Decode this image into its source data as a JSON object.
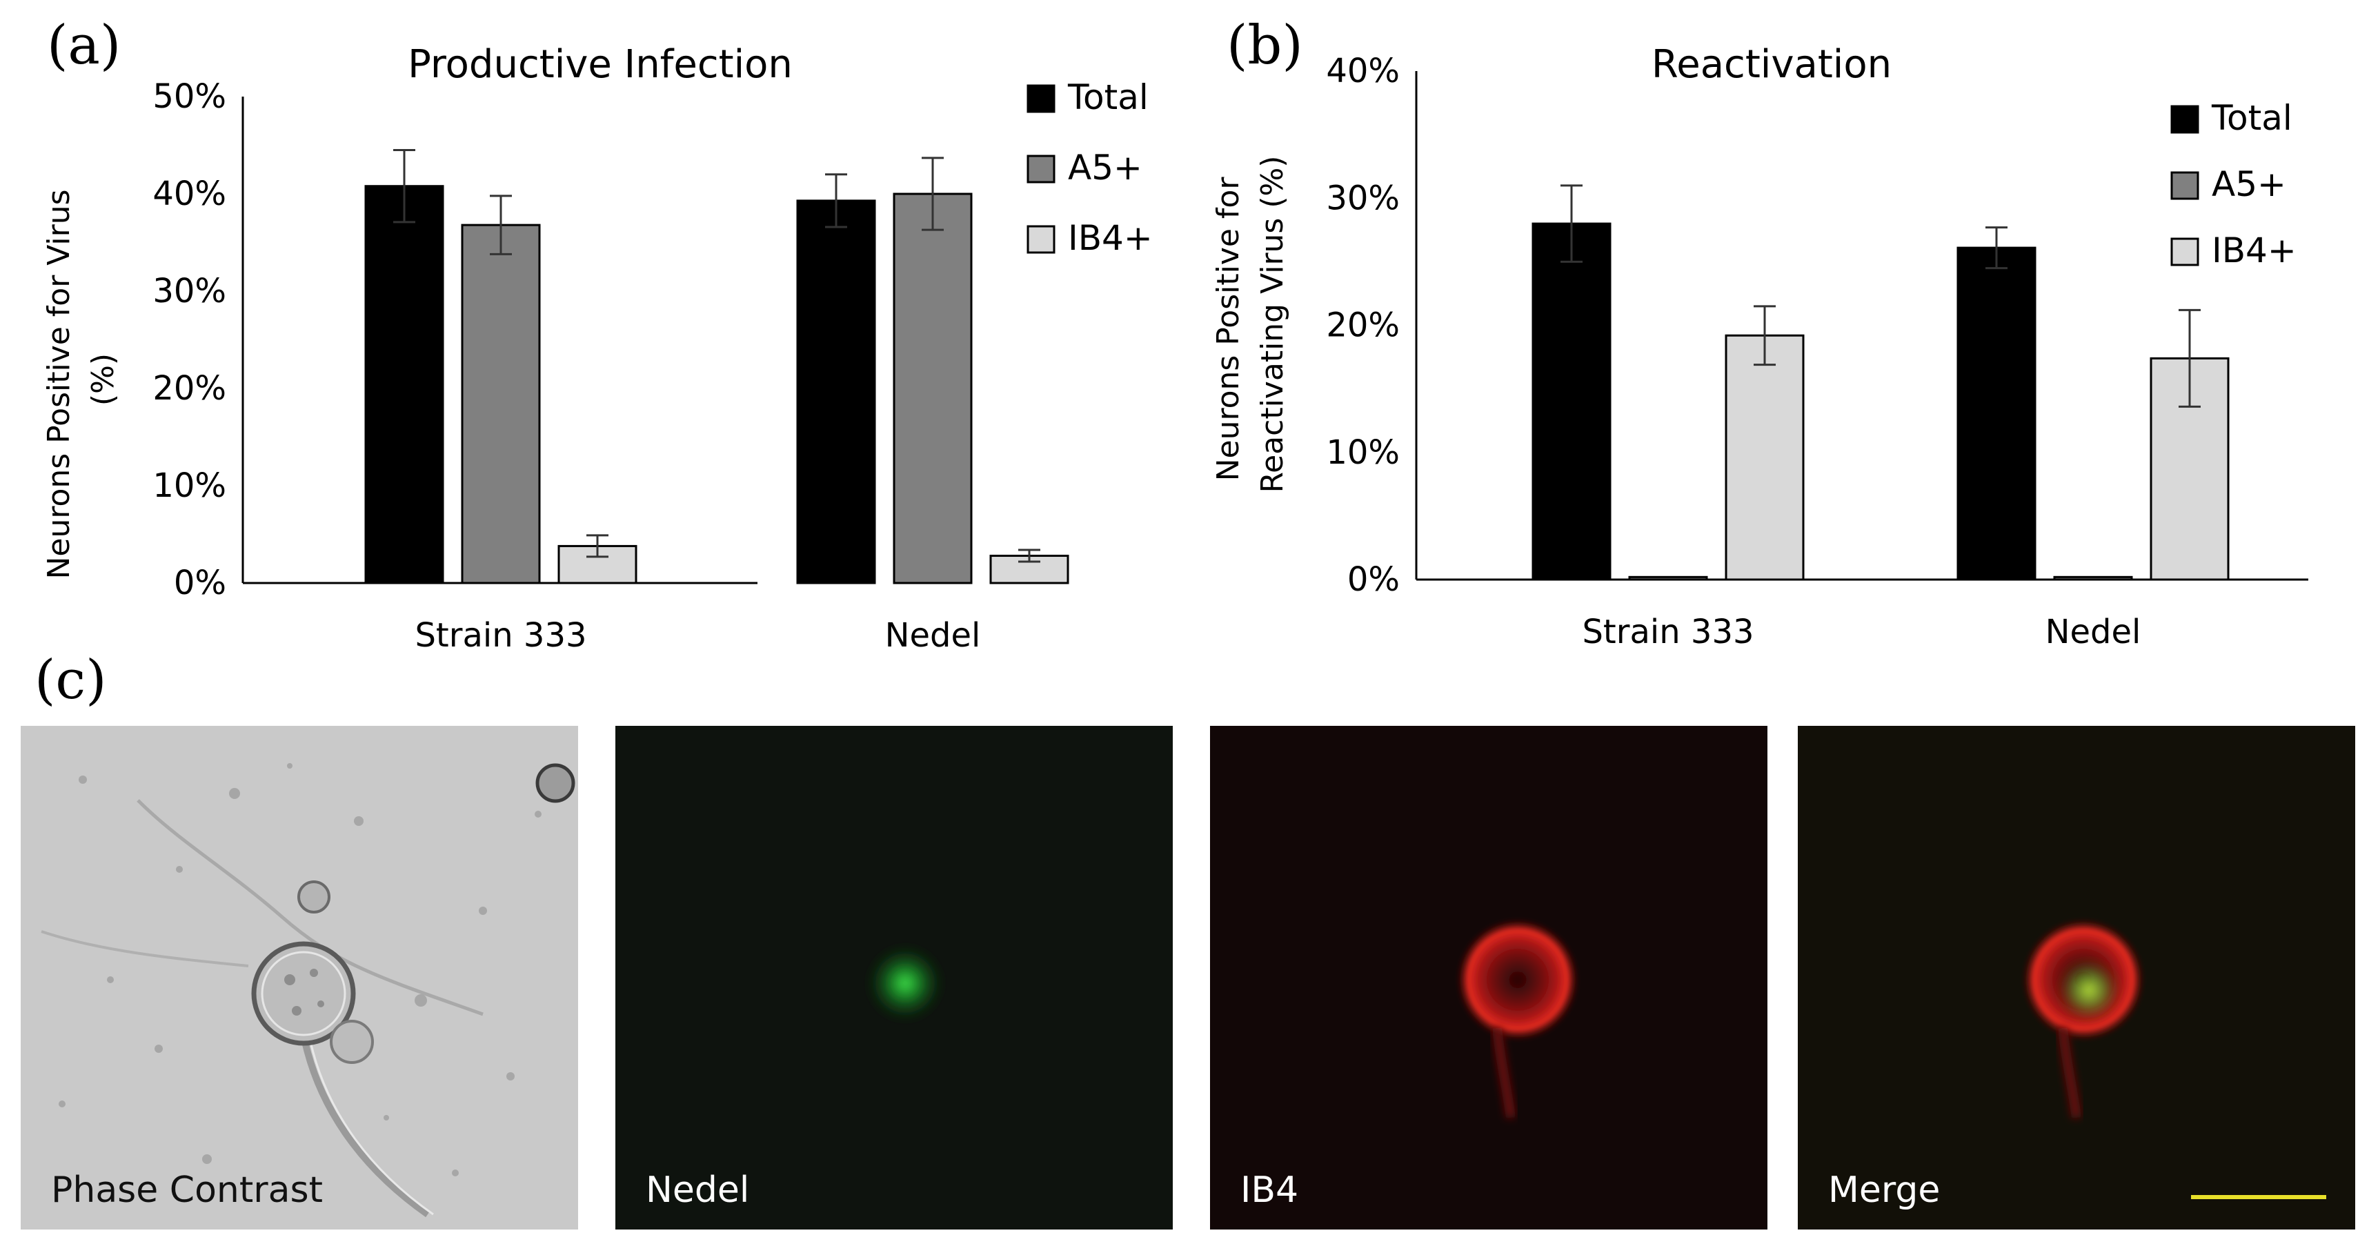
{
  "figure": {
    "panel_a_label": "(a)",
    "panel_b_label": "(b)",
    "panel_c_label": "(c)"
  },
  "chart_data": [
    {
      "type": "bar",
      "title": "Productive Infection",
      "ylabel": "Neurons Positive for Virus (%)",
      "ylabel_lines": [
        "Neurons Positive for Virus",
        "(%)"
      ],
      "xlabel": "",
      "ylim": [
        0,
        50
      ],
      "yticks": [
        "0%",
        "10%",
        "20%",
        "30%",
        "40%",
        "50%"
      ],
      "categories": [
        "Strain 333",
        "Nedel"
      ],
      "series": [
        {
          "name": "Total",
          "color": "#000000",
          "values": [
            40.8,
            39.3
          ],
          "errors": [
            3.7,
            2.7
          ]
        },
        {
          "name": "A5+",
          "color": "#808080",
          "values": [
            36.8,
            40.0
          ],
          "errors": [
            3.0,
            3.7
          ]
        },
        {
          "name": "IB4+",
          "color": "#d9d9d9",
          "values": [
            3.8,
            2.8
          ],
          "errors": [
            1.1,
            0.6
          ]
        }
      ],
      "legend_position": "top-right",
      "grid": false
    },
    {
      "type": "bar",
      "title": "Reactivation",
      "ylabel": "Neurons Positive for Reactivating Virus (%)",
      "ylabel_lines": [
        "Neurons Positive for",
        "Reactivating Virus (%)"
      ],
      "xlabel": "",
      "ylim": [
        0,
        40
      ],
      "yticks": [
        "0%",
        "10%",
        "20%",
        "30%",
        "40%"
      ],
      "categories": [
        "Strain 333",
        "Nedel"
      ],
      "series": [
        {
          "name": "Total",
          "color": "#000000",
          "values": [
            28.0,
            26.1
          ],
          "errors": [
            3.0,
            1.6
          ]
        },
        {
          "name": "A5+",
          "color": "#808080",
          "values": [
            0.2,
            0.2
          ],
          "errors": [
            0,
            0
          ]
        },
        {
          "name": "IB4+",
          "color": "#d9d9d9",
          "values": [
            19.2,
            17.4
          ],
          "errors": [
            2.3,
            3.8
          ]
        }
      ],
      "legend_position": "top-right",
      "grid": false
    }
  ],
  "micrographs": [
    {
      "caption": "Phase Contrast"
    },
    {
      "caption": "Nedel"
    },
    {
      "caption": "IB4"
    },
    {
      "caption": "Merge"
    }
  ]
}
